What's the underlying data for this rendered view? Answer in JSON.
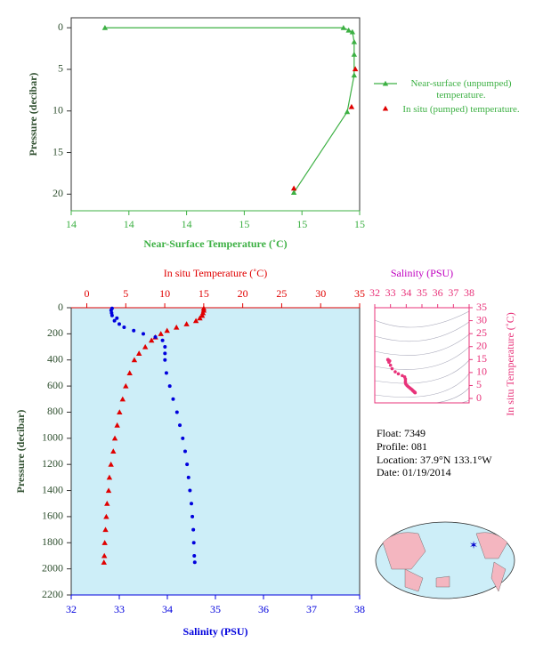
{
  "chart_data": [
    {
      "type": "line",
      "xlabel": "Near-Surface Temperature (˚C)",
      "ylabel": "Pressure (decibar)",
      "xlim": [
        14,
        15
      ],
      "xticks": [
        {
          "value": 14.0,
          "label": "14"
        },
        {
          "value": 14.2,
          "label": "14"
        },
        {
          "value": 14.4,
          "label": "14"
        },
        {
          "value": 14.6,
          "label": "15"
        },
        {
          "value": 14.8,
          "label": "15"
        },
        {
          "value": 15.0,
          "label": "15"
        }
      ],
      "ylim": [
        -1.2,
        22
      ],
      "y_inverted": true,
      "yticks": [
        0,
        5,
        10,
        15,
        20
      ],
      "series": [
        {
          "name": "Near-surface (unpumped) temperature.",
          "color": "#3cb043",
          "marker": "triangle",
          "line": true,
          "x": [
            14.117,
            14.944,
            14.962,
            14.975,
            14.981,
            14.981,
            14.981,
            14.957,
            14.772
          ],
          "values": [
            0,
            0,
            0.3,
            0.5,
            1.7,
            3.2,
            5.7,
            10.1,
            19.8
          ]
        },
        {
          "name": "In situ (pumped) temperature.",
          "color": "#e00000",
          "marker": "triangle",
          "line": false,
          "x": [
            14.985,
            14.972,
            14.772
          ],
          "values": [
            4.95,
            9.5,
            19.3
          ]
        }
      ]
    },
    {
      "type": "profile",
      "ylabel": "Pressure (decibar)",
      "x2label": "In situ Temperature (˚C)",
      "xlabel": "Salinity (PSU)",
      "ylim": [
        0,
        2200
      ],
      "y_inverted": true,
      "yticks": [
        0,
        200,
        400,
        600,
        800,
        1000,
        1200,
        1400,
        1600,
        1800,
        2000,
        2200
      ],
      "x2lim": [
        -2,
        35
      ],
      "x2ticks": [
        0,
        5,
        10,
        15,
        20,
        25,
        30,
        35
      ],
      "xlim": [
        32,
        38
      ],
      "xticks": [
        32,
        33,
        34,
        35,
        36,
        37,
        38
      ],
      "background": "#cdeef8",
      "pressure": [
        5,
        20,
        40,
        60,
        80,
        100,
        125,
        150,
        175,
        200,
        225,
        250,
        300,
        350,
        400,
        500,
        600,
        700,
        800,
        900,
        1000,
        1100,
        1200,
        1300,
        1400,
        1500,
        1600,
        1700,
        1800,
        1900,
        1950
      ],
      "series": [
        {
          "axis": "x2",
          "color": "#e00000",
          "marker": "triangle",
          "values": [
            15.0,
            15.0,
            14.9,
            14.8,
            14.5,
            14.0,
            12.8,
            11.5,
            10.3,
            9.5,
            8.8,
            8.3,
            7.5,
            6.7,
            6.1,
            5.5,
            5.0,
            4.6,
            4.2,
            3.9,
            3.6,
            3.4,
            3.1,
            2.9,
            2.8,
            2.6,
            2.5,
            2.4,
            2.3,
            2.25,
            2.2
          ]
        },
        {
          "axis": "x",
          "color": "#0000dd",
          "marker": "circle",
          "values": [
            32.85,
            32.83,
            32.84,
            32.85,
            32.95,
            32.9,
            33.0,
            33.1,
            33.3,
            33.5,
            33.75,
            33.9,
            33.95,
            33.95,
            33.95,
            33.98,
            34.05,
            34.12,
            34.2,
            34.26,
            34.32,
            34.37,
            34.41,
            34.44,
            34.47,
            34.5,
            34.52,
            34.54,
            34.55,
            34.56,
            34.57
          ]
        }
      ]
    },
    {
      "type": "ts",
      "xlabel": "Salinity (PSU)",
      "ylabel": "In situ Temperature (˚C)",
      "color": "#e8337a",
      "xlim": [
        32,
        38
      ],
      "xticks": [
        32,
        33,
        34,
        35,
        36,
        37,
        38
      ],
      "ylim": [
        -1.7,
        35
      ],
      "yticks": [
        0,
        5,
        10,
        15,
        20,
        25,
        30,
        35
      ]
    }
  ],
  "info": {
    "float": "Float:  7349",
    "profile": "Profile:  081",
    "location": "Location:  37.9°N  133.1°W",
    "date": "Date:  01/19/2014"
  }
}
